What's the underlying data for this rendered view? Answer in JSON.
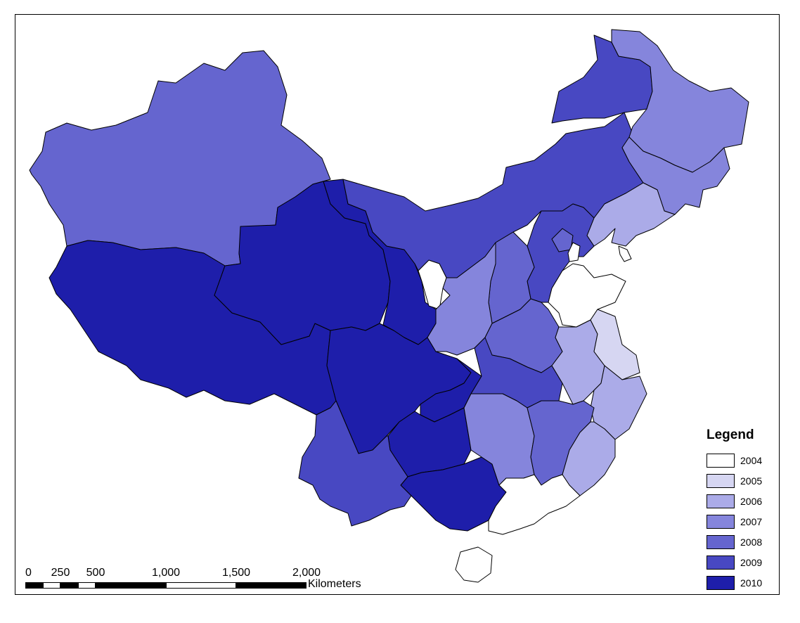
{
  "legend": {
    "title": "Legend",
    "items": [
      {
        "label": "2004",
        "color": "#ffffff"
      },
      {
        "label": "2005",
        "color": "#d6d6f2"
      },
      {
        "label": "2006",
        "color": "#ababe8"
      },
      {
        "label": "2007",
        "color": "#8585dc"
      },
      {
        "label": "2008",
        "color": "#6565cf"
      },
      {
        "label": "2009",
        "color": "#4848c2"
      },
      {
        "label": "2010",
        "color": "#1e1eaa"
      }
    ]
  },
  "scale_bar": {
    "ticks": [
      "0",
      "250",
      "500",
      "1,000",
      "1,500",
      "2,000"
    ],
    "unit": "Kilometers"
  },
  "map": {
    "regions": [
      {
        "name": "xinjiang",
        "year": "2008"
      },
      {
        "name": "tibet",
        "year": "2010"
      },
      {
        "name": "qinghai",
        "year": "2010"
      },
      {
        "name": "gansu",
        "year": "2010"
      },
      {
        "name": "sichuan",
        "year": "2010"
      },
      {
        "name": "chongqing",
        "year": "2010"
      },
      {
        "name": "guizhou",
        "year": "2010"
      },
      {
        "name": "guangxi",
        "year": "2010"
      },
      {
        "name": "yunnan",
        "year": "2009"
      },
      {
        "name": "inner-mongolia",
        "year": "2009"
      },
      {
        "name": "heilongjiang-north",
        "year": "2009"
      },
      {
        "name": "heilongjiang",
        "year": "2007"
      },
      {
        "name": "jilin",
        "year": "2007"
      },
      {
        "name": "liaoning",
        "year": "2006"
      },
      {
        "name": "hebei",
        "year": "2009"
      },
      {
        "name": "beijing",
        "year": "2008"
      },
      {
        "name": "tianjin",
        "year": "2004"
      },
      {
        "name": "shanxi",
        "year": "2008"
      },
      {
        "name": "shaanxi",
        "year": "2007"
      },
      {
        "name": "ningxia",
        "year": "2004"
      },
      {
        "name": "henan",
        "year": "2008"
      },
      {
        "name": "shandong",
        "year": "2004"
      },
      {
        "name": "hubei",
        "year": "2009"
      },
      {
        "name": "hunan",
        "year": "2007"
      },
      {
        "name": "anhui",
        "year": "2006"
      },
      {
        "name": "jiangsu",
        "year": "2005"
      },
      {
        "name": "zhejiang",
        "year": "2006"
      },
      {
        "name": "jiangxi",
        "year": "2008"
      },
      {
        "name": "fujian",
        "year": "2006"
      },
      {
        "name": "guangdong",
        "year": "2004"
      },
      {
        "name": "hainan",
        "year": "2004"
      }
    ]
  }
}
